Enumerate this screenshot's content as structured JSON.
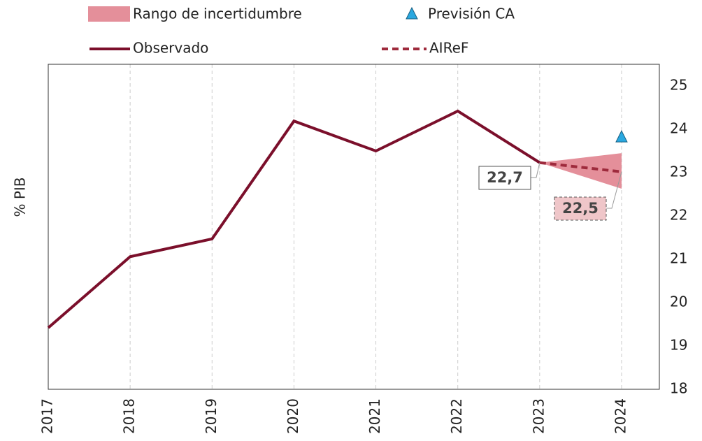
{
  "chart_data": {
    "type": "line",
    "categories": [
      "2017",
      "2018",
      "2019",
      "2020",
      "2021",
      "2022",
      "2023",
      "2024"
    ],
    "y_label": "% PIB",
    "series": [
      {
        "name": "Observado",
        "color": "#7b0f2b",
        "style": "solid",
        "values": [
          19.42,
          21.06,
          21.47,
          24.19,
          23.5,
          24.42,
          23.23,
          null
        ]
      },
      {
        "name": "AIReF",
        "color": "#9e2a3c",
        "style": "dashed",
        "values": [
          null,
          null,
          null,
          null,
          null,
          null,
          23.23,
          23.02
        ]
      }
    ],
    "band": {
      "name": "Rango de incertidumbre",
      "color": "#e48f9a",
      "lower": [
        null,
        null,
        null,
        null,
        null,
        null,
        23.23,
        22.63
      ],
      "upper": [
        null,
        null,
        null,
        null,
        null,
        null,
        23.23,
        23.45
      ]
    },
    "points": {
      "name": "Previsión CA",
      "color": "#29a8e0",
      "values": [
        null,
        null,
        null,
        null,
        null,
        null,
        null,
        23.82
      ]
    },
    "annotations": [
      {
        "text": "22,7",
        "category": 6
      },
      {
        "text": "22,5",
        "category": 7
      }
    ],
    "ylim": [
      18,
      25.5
    ],
    "yticks": [
      18,
      19,
      20,
      21,
      22,
      23,
      24,
      25
    ],
    "y_axis_side": "right",
    "grid": "x"
  }
}
